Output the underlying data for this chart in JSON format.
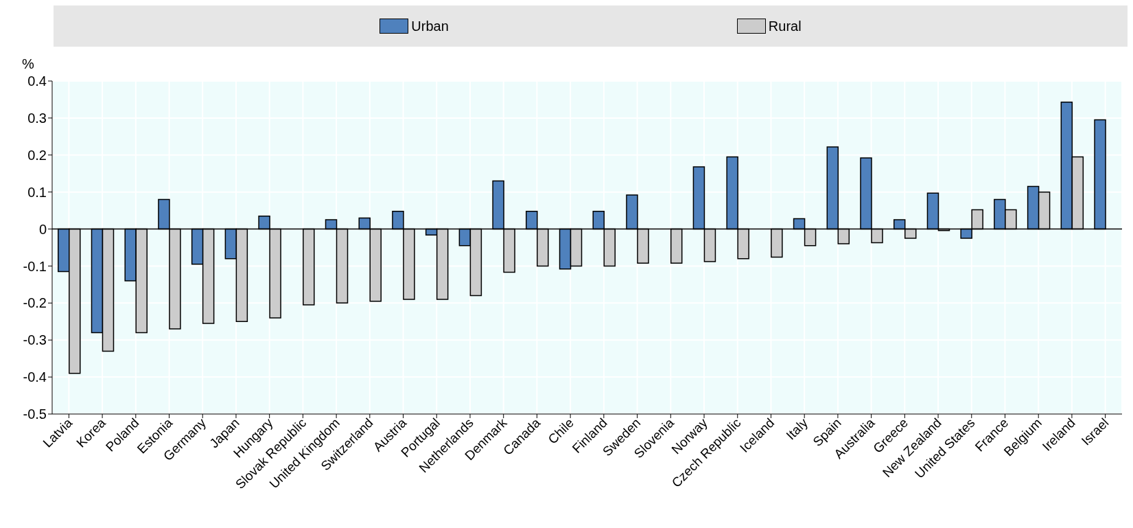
{
  "chart_data": {
    "type": "bar",
    "ylabel": "%",
    "categories": [
      "Latvia",
      "Korea",
      "Poland",
      "Estonia",
      "Germany",
      "Japan",
      "Hungary",
      "Slovak Republic",
      "United Kingdom",
      "Switzerland",
      "Austria",
      "Portugal",
      "Netherlands",
      "Denmark",
      "Canada",
      "Chile",
      "Finland",
      "Sweden",
      "Slovenia",
      "Norway",
      "Czech Republic",
      "Iceland",
      "Italy",
      "Spain",
      "Australia",
      "Greece",
      "New Zealand",
      "United States",
      "France",
      "Belgium",
      "Ireland",
      "Israel"
    ],
    "series": [
      {
        "name": "Urban",
        "color": "#4f81bd",
        "values": [
          -0.115,
          -0.28,
          -0.14,
          0.08,
          -0.095,
          -0.08,
          0.035,
          null,
          0.025,
          0.03,
          0.048,
          -0.016,
          -0.045,
          0.13,
          0.048,
          -0.108,
          0.048,
          0.092,
          null,
          0.168,
          0.195,
          null,
          0.028,
          0.222,
          0.192,
          0.025,
          0.097,
          -0.025,
          0.08,
          0.115,
          0.343,
          0.295
        ]
      },
      {
        "name": "Rural",
        "color": "#cccccc",
        "values": [
          -0.39,
          -0.33,
          -0.28,
          -0.27,
          -0.255,
          -0.25,
          -0.24,
          -0.205,
          -0.2,
          -0.195,
          -0.19,
          -0.19,
          -0.18,
          -0.117,
          -0.1,
          -0.1,
          -0.1,
          -0.092,
          -0.092,
          -0.088,
          -0.08,
          -0.076,
          -0.045,
          -0.04,
          -0.037,
          -0.025,
          -0.004,
          0.052,
          0.052,
          0.1,
          0.195,
          null
        ]
      }
    ],
    "ylim": [
      -0.5,
      0.4
    ],
    "yticks": [
      {
        "value": -0.5,
        "label": "-0.5"
      },
      {
        "value": -0.4,
        "label": "-0.4"
      },
      {
        "value": -0.3,
        "label": "-0.3"
      },
      {
        "value": -0.2,
        "label": "-0.2"
      },
      {
        "value": -0.1,
        "label": "-0.1"
      },
      {
        "value": 0,
        "label": "0"
      },
      {
        "value": 0.1,
        "label": "0.1"
      },
      {
        "value": 0.2,
        "label": "0.2"
      },
      {
        "value": 0.3,
        "label": "0.3"
      },
      {
        "value": 0.4,
        "label": "0.4"
      }
    ],
    "grid": true,
    "legend": "top"
  }
}
